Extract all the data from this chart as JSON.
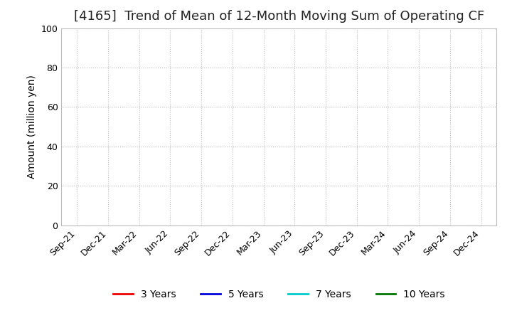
{
  "title": "[4165]  Trend of Mean of 12-Month Moving Sum of Operating CF",
  "ylabel": "Amount (million yen)",
  "ylim": [
    0,
    100
  ],
  "yticks": [
    0,
    20,
    40,
    60,
    80,
    100
  ],
  "x_labels": [
    "Sep-21",
    "Dec-21",
    "Mar-22",
    "Jun-22",
    "Sep-22",
    "Dec-22",
    "Mar-23",
    "Jun-23",
    "Sep-23",
    "Dec-23",
    "Mar-24",
    "Jun-24",
    "Sep-24",
    "Dec-24"
  ],
  "background_color": "#ffffff",
  "plot_bg_color": "#ffffff",
  "grid_color": "#bbbbbb",
  "legend_entries": [
    {
      "label": "3 Years",
      "color": "#ee0000"
    },
    {
      "label": "5 Years",
      "color": "#0000dd"
    },
    {
      "label": "7 Years",
      "color": "#00cccc"
    },
    {
      "label": "10 Years",
      "color": "#007700"
    }
  ],
  "title_fontsize": 13,
  "axis_label_fontsize": 10,
  "tick_fontsize": 9,
  "legend_fontsize": 10
}
